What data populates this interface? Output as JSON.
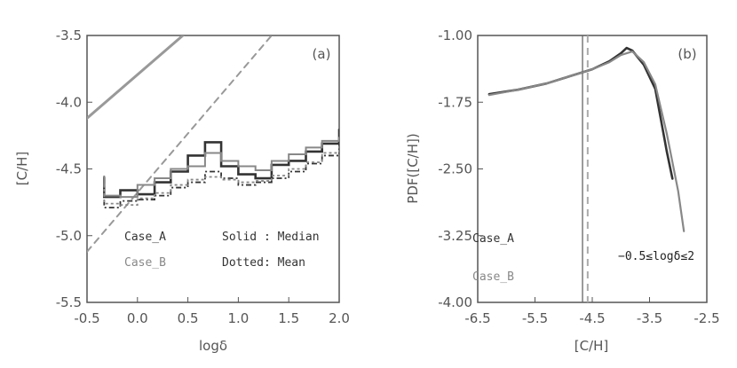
{
  "chart_data": [
    {
      "panel": "(a)",
      "type": "line",
      "xlabel": "logδ",
      "ylabel": "[C/H]",
      "xlim": [
        -0.5,
        2.0
      ],
      "ylim": [
        -5.5,
        -3.5
      ],
      "xticks": [
        "-0.5",
        "0.0",
        "0.5",
        "1.0",
        "1.5",
        "2.0"
      ],
      "yticks": [
        "-3.5",
        "-4.0",
        "-4.5",
        "-5.0",
        "-5.5"
      ],
      "legend": {
        "case_a": "Case_A",
        "case_b": "Case_B",
        "solid": "Solid : Median",
        "dotted": "Dotted: Mean"
      },
      "reference_lines": [
        {
          "name": "solid-reference",
          "x": [
            -0.5,
            0.45
          ],
          "y": [
            -4.12,
            -3.5
          ]
        },
        {
          "name": "dashed-reference",
          "x": [
            -0.5,
            1.33
          ],
          "y": [
            -5.12,
            -3.5
          ]
        }
      ],
      "step_edges": [
        -0.33,
        -0.17,
        0.0,
        0.17,
        0.33,
        0.5,
        0.67,
        0.83,
        1.0,
        1.17,
        1.33,
        1.5,
        1.67,
        1.83,
        2.0
      ],
      "series": [
        {
          "name": "Case_A Median",
          "style": "solid",
          "color": "#333333",
          "values": [
            -4.71,
            -4.66,
            -4.69,
            -4.6,
            -4.52,
            -4.4,
            -4.3,
            -4.48,
            -4.54,
            -4.57,
            -4.47,
            -4.44,
            -4.37,
            -4.31,
            -4.2
          ]
        },
        {
          "name": "Case_B Median",
          "style": "solid",
          "color": "#888888",
          "values": [
            -4.7,
            -4.71,
            -4.62,
            -4.57,
            -4.5,
            -4.48,
            -4.38,
            -4.44,
            -4.48,
            -4.51,
            -4.44,
            -4.39,
            -4.34,
            -4.29,
            -4.26
          ]
        },
        {
          "name": "Case_A Mean",
          "style": "dotted",
          "color": "#333333",
          "values": [
            -4.79,
            -4.74,
            -4.73,
            -4.7,
            -4.64,
            -4.6,
            -4.52,
            -4.57,
            -4.62,
            -4.6,
            -4.57,
            -4.52,
            -4.46,
            -4.4,
            -4.3
          ]
        },
        {
          "name": "Case_B Mean",
          "style": "dotted",
          "color": "#888888",
          "values": [
            -4.76,
            -4.77,
            -4.72,
            -4.68,
            -4.62,
            -4.58,
            -4.56,
            -4.58,
            -4.6,
            -4.59,
            -4.55,
            -4.5,
            -4.45,
            -4.38,
            -4.35
          ]
        }
      ]
    },
    {
      "panel": "(b)",
      "type": "line",
      "xlabel": "[C/H]",
      "ylabel": "PDF([C/H])",
      "xlim": [
        -6.5,
        -2.5
      ],
      "ylim": [
        -4.0,
        -1.0
      ],
      "xticks": [
        "-6.5",
        "-5.5",
        "-4.5",
        "-3.5",
        "-2.5"
      ],
      "yticks": [
        "-1.00",
        "-1.75",
        "-2.50",
        "-3.25",
        "-4.00"
      ],
      "legend": {
        "case_a": "Case_A",
        "case_b": "Case_B",
        "range": "−0.5≤logδ≤2"
      },
      "vertical_lines": [
        {
          "name": "solid-vertical",
          "x": -4.67,
          "style": "solid"
        },
        {
          "name": "dashed-vertical",
          "x": -4.58,
          "style": "dashed"
        }
      ],
      "series": [
        {
          "name": "Case_A",
          "color": "#333333",
          "x": [
            -6.3,
            -5.8,
            -5.3,
            -4.9,
            -4.5,
            -4.2,
            -4.0,
            -3.9,
            -3.8,
            -3.6,
            -3.4,
            -3.3,
            -3.2,
            -3.1
          ],
          "y": [
            -1.66,
            -1.61,
            -1.54,
            -1.46,
            -1.38,
            -1.29,
            -1.2,
            -1.14,
            -1.17,
            -1.33,
            -1.6,
            -1.95,
            -2.3,
            -2.61
          ]
        },
        {
          "name": "Case_B",
          "color": "#888888",
          "x": [
            -6.3,
            -5.8,
            -5.3,
            -4.9,
            -4.5,
            -4.2,
            -4.0,
            -3.8,
            -3.6,
            -3.4,
            -3.2,
            -3.0,
            -2.9
          ],
          "y": [
            -1.67,
            -1.61,
            -1.54,
            -1.46,
            -1.38,
            -1.3,
            -1.22,
            -1.18,
            -1.3,
            -1.55,
            -2.1,
            -2.75,
            -3.2
          ]
        }
      ]
    }
  ]
}
